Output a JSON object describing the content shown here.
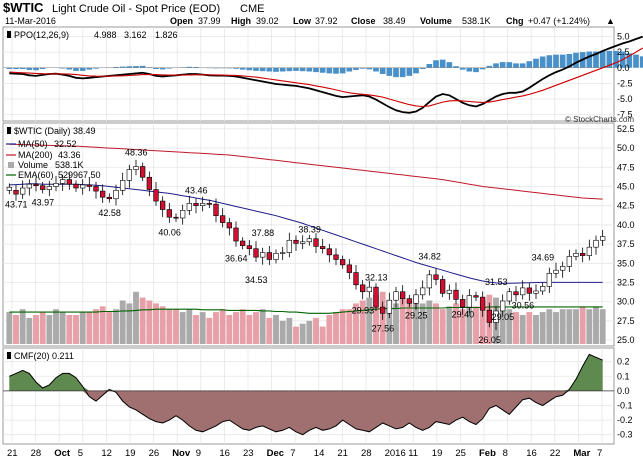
{
  "header": {
    "symbol": "$WTIC",
    "name": "Light Crude Oil - Spot Price (EOD)",
    "exchange": "CME",
    "date": "11-Mar-2016",
    "open_label": "Open",
    "open": "37.99",
    "high_label": "High",
    "high": "39.02",
    "low_label": "Low",
    "low": "37.92",
    "close_label": "Close",
    "close": "38.49",
    "volume_label": "Volume",
    "volume": "538.1K",
    "chg_label": "Chg",
    "chg": "+0.47 (+1.24%)",
    "chg_arrow": "▲",
    "watermark": "© StockCharts.com"
  },
  "colors": {
    "macd_line": "#000000",
    "signal_line": "#cc0000",
    "histogram": "#4a90c8",
    "ma50": "#1e1e8c",
    "ma200": "#c0182a",
    "ema60": "#006400",
    "volume_up": "#aaaaaa",
    "volume_down": "#e8a0a8",
    "candle_down": "#cc1133",
    "candle_up": "#ffffff",
    "cmf_fill": "#a07070",
    "cmf_pos_fill": "#5f8a4f"
  },
  "chart_data": [
    {
      "type": "line",
      "panel": "PPO",
      "indicator_label": "PPO(12,26,9)",
      "legend": [
        {
          "name": "PPO",
          "value": "4.988",
          "color": "#000000"
        },
        {
          "name": "Signal",
          "value": "3.162",
          "color": "#cc0000"
        },
        {
          "name": "Histogram",
          "value": "1.826",
          "color": "#4a90c8"
        }
      ],
      "y_ticks": [
        "5.0",
        "2.5",
        "0.0",
        "-2.5",
        "-5.0",
        "-7.5"
      ],
      "ylim": [
        -8.2,
        6.2
      ],
      "series": [
        {
          "name": "PPO",
          "values": [
            -0.9,
            -0.95,
            -1.0,
            -1.2,
            -1.3,
            -1.15,
            -1.0,
            -0.95,
            -1.1,
            -1.3,
            -1.6,
            -1.7,
            -1.6,
            -1.5,
            -1.4,
            -1.3,
            -1.2,
            -1.1,
            -1.0,
            -0.9,
            -0.8,
            -1.0,
            -1.3,
            -1.4,
            -1.3,
            -1.2,
            -1.1,
            -1.0,
            -1.0,
            -1.1,
            -1.2,
            -1.25,
            -1.25,
            -1.3,
            -1.4,
            -1.6,
            -1.8,
            -2.0,
            -2.2,
            -2.4,
            -2.6,
            -2.7,
            -2.8,
            -2.9,
            -3.1,
            -3.3,
            -3.6,
            -3.9,
            -4.2,
            -4.5,
            -4.7,
            -4.6,
            -4.5,
            -4.4,
            -4.6,
            -5.1,
            -5.7,
            -6.3,
            -6.8,
            -7.1,
            -7.2,
            -7.0,
            -6.4,
            -5.5,
            -4.6,
            -4.2,
            -4.4,
            -5.0,
            -5.6,
            -6.0,
            -6.2,
            -5.8,
            -5.2,
            -4.6,
            -4.2,
            -4.0,
            -4.0,
            -3.8,
            -3.2,
            -2.5,
            -1.8,
            -1.2,
            -0.7,
            -0.3,
            0.2,
            0.8,
            1.3,
            1.8,
            2.2,
            2.7,
            3.1,
            3.5,
            3.9,
            4.2,
            4.6,
            4.99
          ]
        },
        {
          "name": "Signal",
          "values": [
            -0.7,
            -0.75,
            -0.8,
            -0.85,
            -0.9,
            -0.95,
            -0.97,
            -0.97,
            -0.98,
            -1.02,
            -1.1,
            -1.2,
            -1.3,
            -1.35,
            -1.37,
            -1.35,
            -1.32,
            -1.28,
            -1.24,
            -1.17,
            -1.1,
            -1.08,
            -1.1,
            -1.14,
            -1.17,
            -1.18,
            -1.17,
            -1.15,
            -1.12,
            -1.12,
            -1.13,
            -1.15,
            -1.17,
            -1.2,
            -1.23,
            -1.3,
            -1.4,
            -1.5,
            -1.65,
            -1.8,
            -1.95,
            -2.1,
            -2.25,
            -2.4,
            -2.55,
            -2.7,
            -2.9,
            -3.1,
            -3.3,
            -3.55,
            -3.8,
            -4.0,
            -4.15,
            -4.25,
            -4.35,
            -4.5,
            -4.7,
            -5.0,
            -5.3,
            -5.6,
            -5.9,
            -6.1,
            -6.2,
            -6.1,
            -5.8,
            -5.5,
            -5.3,
            -5.25,
            -5.3,
            -5.4,
            -5.5,
            -5.55,
            -5.5,
            -5.3,
            -5.1,
            -4.9,
            -4.7,
            -4.5,
            -4.25,
            -3.95,
            -3.6,
            -3.2,
            -2.8,
            -2.4,
            -2.0,
            -1.6,
            -1.2,
            -0.8,
            -0.4,
            0.0,
            0.4,
            0.8,
            1.3,
            1.9,
            2.5,
            3.16
          ]
        }
      ],
      "histogram": [
        -0.2,
        -0.2,
        -0.2,
        -0.35,
        -0.4,
        -0.2,
        -0.03,
        0.02,
        -0.12,
        -0.28,
        -0.5,
        -0.5,
        -0.3,
        -0.15,
        -0.03,
        0.05,
        0.12,
        0.18,
        0.24,
        0.27,
        0.3,
        0.08,
        -0.2,
        -0.26,
        -0.13,
        -0.02,
        0.07,
        0.15,
        0.12,
        0.02,
        -0.07,
        -0.1,
        -0.08,
        -0.1,
        -0.17,
        -0.3,
        -0.4,
        -0.5,
        -0.55,
        -0.6,
        -0.65,
        -0.6,
        -0.55,
        -0.5,
        -0.55,
        -0.6,
        -0.7,
        -0.8,
        -0.9,
        -0.95,
        -0.9,
        -0.6,
        -0.35,
        -0.15,
        -0.25,
        -0.6,
        -1.0,
        -1.3,
        -1.5,
        -1.5,
        -1.3,
        -0.9,
        -0.2,
        0.6,
        1.2,
        1.3,
        0.9,
        0.25,
        -0.3,
        -0.6,
        -0.7,
        -0.25,
        0.3,
        0.7,
        0.9,
        0.9,
        0.7,
        0.7,
        1.05,
        1.45,
        1.8,
        2.0,
        2.1,
        2.1,
        2.2,
        2.4,
        2.5,
        2.6,
        2.6,
        2.7,
        2.7,
        2.7,
        2.6,
        2.3,
        2.1,
        1.83
      ]
    },
    {
      "type": "candlestick",
      "panel": "Price",
      "indicator_label": "$WTIC (Daily) 38.49",
      "legend": [
        {
          "name": "MA(50)",
          "value": "32.52",
          "color": "#1e1e8c"
        },
        {
          "name": "MA(200)",
          "value": "43.36",
          "color": "#c0182a"
        },
        {
          "name": "Volume",
          "value": "538.1K",
          "color": "#777777"
        },
        {
          "name": "EMA(60)",
          "value": "529967.50",
          "color": "#006400"
        }
      ],
      "y_ticks": [
        "52.5",
        "50.0",
        "47.5",
        "45.0",
        "42.5",
        "40.0",
        "37.5",
        "35.0",
        "32.5",
        "30.0",
        "27.5",
        "25.0"
      ],
      "ylim": [
        24.5,
        53.0
      ],
      "annotations": [
        {
          "text": "43.71",
          "i": 1,
          "v": 43.71,
          "pos": "below"
        },
        {
          "text": "43.97",
          "i": 5,
          "v": 43.97,
          "pos": "below"
        },
        {
          "text": "42.58",
          "i": 15,
          "v": 42.58,
          "pos": "below"
        },
        {
          "text": "48.36",
          "i": 19,
          "v": 48.36,
          "pos": "above"
        },
        {
          "text": "40.06",
          "i": 24,
          "v": 40.06,
          "pos": "below"
        },
        {
          "text": "43.46",
          "i": 28,
          "v": 43.46,
          "pos": "above"
        },
        {
          "text": "36.64",
          "i": 34,
          "v": 36.64,
          "pos": "below"
        },
        {
          "text": "37.88",
          "i": 38,
          "v": 37.88,
          "pos": "above"
        },
        {
          "text": "34.53",
          "i": 37,
          "v": 34.53,
          "pos": "below2"
        },
        {
          "text": "38.39",
          "i": 45,
          "v": 38.39,
          "pos": "above"
        },
        {
          "text": "29.93",
          "i": 53,
          "v": 29.93,
          "pos": "below"
        },
        {
          "text": "32.13",
          "i": 55,
          "v": 32.13,
          "pos": "above"
        },
        {
          "text": "27.56",
          "i": 56,
          "v": 27.56,
          "pos": "below"
        },
        {
          "text": "29.25",
          "i": 61,
          "v": 29.25,
          "pos": "below"
        },
        {
          "text": "34.82",
          "i": 63,
          "v": 34.82,
          "pos": "above"
        },
        {
          "text": "29.40",
          "i": 68,
          "v": 29.4,
          "pos": "below"
        },
        {
          "text": "26.05",
          "i": 72,
          "v": 26.05,
          "pos": "below"
        },
        {
          "text": "29.05",
          "i": 74,
          "v": 29.05,
          "pos": "below"
        },
        {
          "text": "31.53",
          "i": 73,
          "v": 31.53,
          "pos": "above"
        },
        {
          "text": "30.56",
          "i": 77,
          "v": 30.56,
          "pos": "below"
        },
        {
          "text": "34.69",
          "i": 80,
          "v": 34.69,
          "pos": "above"
        }
      ],
      "closes": [
        44.5,
        44.0,
        44.8,
        45.3,
        45.1,
        44.6,
        45.0,
        45.4,
        45.9,
        45.3,
        44.8,
        45.2,
        45.0,
        44.4,
        43.6,
        43.4,
        44.5,
        45.8,
        47.2,
        47.6,
        46.2,
        44.6,
        43.1,
        42.0,
        41.0,
        40.9,
        41.9,
        42.8,
        42.5,
        42.8,
        42.7,
        41.2,
        40.3,
        39.6,
        37.9,
        37.3,
        36.9,
        35.8,
        36.4,
        35.5,
        36.3,
        36.4,
        38.0,
        37.6,
        37.8,
        38.2,
        37.2,
        36.9,
        36.1,
        35.5,
        34.8,
        33.8,
        32.2,
        31.3,
        31.9,
        29.3,
        28.5,
        30.2,
        31.3,
        30.4,
        29.8,
        30.9,
        31.8,
        33.5,
        32.9,
        31.1,
        31.5,
        30.3,
        29.3,
        30.8,
        30.6,
        28.9,
        27.3,
        28.8,
        30.1,
        31.3,
        30.9,
        31.8,
        31.1,
        31.4,
        32.0,
        33.7,
        34.1,
        34.6,
        35.9,
        36.3,
        36.0,
        37.1,
        38.0,
        38.49
      ],
      "series": [
        {
          "name": "MA(50)",
          "values": [
            45.2,
            45.25,
            45.3,
            45.35,
            45.35,
            45.3,
            45.3,
            45.3,
            45.3,
            45.3,
            45.28,
            45.25,
            45.2,
            45.15,
            45.1,
            45.0,
            44.9,
            44.8,
            44.7,
            44.6,
            44.5,
            44.4,
            44.3,
            44.2,
            44.1,
            43.95,
            43.8,
            43.65,
            43.5,
            43.35,
            43.2,
            43.0,
            42.8,
            42.6,
            42.4,
            42.2,
            42.0,
            41.8,
            41.6,
            41.4,
            41.2,
            40.95,
            40.7,
            40.45,
            40.2,
            39.9,
            39.6,
            39.3,
            39.0,
            38.7,
            38.4,
            38.1,
            37.8,
            37.5,
            37.2,
            36.9,
            36.6,
            36.3,
            36.0,
            35.7,
            35.4,
            35.1,
            34.85,
            34.6,
            34.35,
            34.1,
            33.85,
            33.6,
            33.35,
            33.1,
            32.9,
            32.7,
            32.55,
            32.45,
            32.4,
            32.4,
            32.42,
            32.45,
            32.48,
            32.5,
            32.52,
            32.52,
            32.52,
            32.52,
            32.52,
            32.52,
            32.52,
            32.52,
            32.52,
            32.52
          ]
        },
        {
          "name": "MA(200)",
          "values": [
            50.5,
            50.47,
            50.45,
            50.42,
            50.4,
            50.37,
            50.35,
            50.32,
            50.3,
            50.27,
            50.25,
            50.2,
            50.15,
            50.1,
            50.05,
            50.0,
            49.95,
            49.9,
            49.85,
            49.8,
            49.75,
            49.7,
            49.65,
            49.6,
            49.55,
            49.5,
            49.45,
            49.4,
            49.35,
            49.3,
            49.25,
            49.2,
            49.15,
            49.1,
            49.0,
            48.9,
            48.8,
            48.7,
            48.6,
            48.5,
            48.4,
            48.3,
            48.2,
            48.1,
            48.0,
            47.9,
            47.8,
            47.7,
            47.6,
            47.5,
            47.4,
            47.3,
            47.2,
            47.1,
            47.0,
            46.9,
            46.8,
            46.7,
            46.6,
            46.5,
            46.4,
            46.3,
            46.2,
            46.1,
            46.0,
            45.9,
            45.75,
            45.6,
            45.45,
            45.3,
            45.15,
            45.0,
            44.9,
            44.8,
            44.7,
            44.6,
            44.5,
            44.4,
            44.3,
            44.2,
            44.1,
            44.0,
            43.9,
            43.8,
            43.7,
            43.6,
            43.5,
            43.45,
            43.4,
            43.36
          ]
        }
      ],
      "volume": [
        0.55,
        0.5,
        0.6,
        0.45,
        0.5,
        0.55,
        0.5,
        0.6,
        0.55,
        0.5,
        0.5,
        0.55,
        0.55,
        0.6,
        0.65,
        0.55,
        0.6,
        0.75,
        0.7,
        0.9,
        0.8,
        0.75,
        0.7,
        0.65,
        0.6,
        0.6,
        0.55,
        0.6,
        0.5,
        0.55,
        0.45,
        0.55,
        0.6,
        0.5,
        0.55,
        0.6,
        0.5,
        0.55,
        0.6,
        0.45,
        0.5,
        0.4,
        0.45,
        0.3,
        0.35,
        0.4,
        0.45,
        0.3,
        0.5,
        0.55,
        0.6,
        0.6,
        0.7,
        0.75,
        0.8,
        0.85,
        0.9,
        0.75,
        0.7,
        0.8,
        0.75,
        0.7,
        0.7,
        0.75,
        0.7,
        0.6,
        0.65,
        0.7,
        0.6,
        0.65,
        0.65,
        0.75,
        0.85,
        0.8,
        0.65,
        0.6,
        0.55,
        0.5,
        0.55,
        0.5,
        0.55,
        0.6,
        0.55,
        0.6,
        0.6,
        0.6,
        0.65,
        0.6,
        0.65,
        0.6
      ],
      "volume_ema": [
        0.55,
        0.55,
        0.55,
        0.55,
        0.55,
        0.55,
        0.55,
        0.55,
        0.55,
        0.55,
        0.55,
        0.55,
        0.55,
        0.55,
        0.56,
        0.56,
        0.56,
        0.57,
        0.57,
        0.58,
        0.59,
        0.59,
        0.6,
        0.6,
        0.6,
        0.6,
        0.6,
        0.6,
        0.6,
        0.59,
        0.59,
        0.59,
        0.59,
        0.58,
        0.58,
        0.58,
        0.58,
        0.58,
        0.57,
        0.57,
        0.56,
        0.56,
        0.55,
        0.55,
        0.54,
        0.53,
        0.53,
        0.53,
        0.53,
        0.54,
        0.55,
        0.56,
        0.57,
        0.58,
        0.59,
        0.6,
        0.61,
        0.61,
        0.61,
        0.62,
        0.62,
        0.62,
        0.62,
        0.62,
        0.62,
        0.62,
        0.63,
        0.63,
        0.63,
        0.63,
        0.63,
        0.63,
        0.64,
        0.64,
        0.64,
        0.64,
        0.64,
        0.64,
        0.64,
        0.64,
        0.64,
        0.64,
        0.64,
        0.64,
        0.64,
        0.64,
        0.64,
        0.64,
        0.64,
        0.64
      ],
      "down_days": [
        1,
        4,
        5,
        9,
        10,
        12,
        13,
        14,
        15,
        20,
        21,
        22,
        23,
        24,
        25,
        28,
        30,
        31,
        32,
        33,
        34,
        35,
        36,
        37,
        39,
        43,
        46,
        47,
        48,
        49,
        50,
        51,
        52,
        53,
        55,
        56,
        59,
        60,
        64,
        65,
        67,
        68,
        70,
        71,
        72,
        76,
        78,
        86
      ]
    },
    {
      "type": "area",
      "panel": "CMF",
      "indicator_label": "CMF(20) 0.211",
      "y_ticks": [
        "0.2",
        "0.1",
        "0.0",
        "-0.1",
        "-0.2",
        "-0.3"
      ],
      "ylim": [
        -0.35,
        0.28
      ],
      "values": [
        0.1,
        0.12,
        0.14,
        0.12,
        0.06,
        0.02,
        0.04,
        0.09,
        0.12,
        0.12,
        0.09,
        0.03,
        -0.04,
        -0.07,
        -0.03,
        0.01,
        -0.01,
        -0.07,
        -0.11,
        -0.13,
        -0.16,
        -0.19,
        -0.21,
        -0.22,
        -0.2,
        -0.17,
        -0.2,
        -0.24,
        -0.27,
        -0.28,
        -0.26,
        -0.24,
        -0.21,
        -0.2,
        -0.23,
        -0.26,
        -0.27,
        -0.25,
        -0.24,
        -0.26,
        -0.28,
        -0.27,
        -0.25,
        -0.28,
        -0.3,
        -0.27,
        -0.25,
        -0.27,
        -0.26,
        -0.24,
        -0.2,
        -0.23,
        -0.26,
        -0.27,
        -0.28,
        -0.25,
        -0.22,
        -0.24,
        -0.26,
        -0.25,
        -0.22,
        -0.25,
        -0.27,
        -0.25,
        -0.21,
        -0.22,
        -0.23,
        -0.2,
        -0.18,
        -0.21,
        -0.23,
        -0.19,
        -0.12,
        -0.1,
        -0.13,
        -0.16,
        -0.11,
        -0.06,
        -0.05,
        -0.08,
        -0.1,
        -0.07,
        -0.04,
        -0.03,
        0.01,
        0.08,
        0.17,
        0.25,
        0.23,
        0.21
      ],
      "x_ticks": [
        "21",
        "28",
        "Oct",
        "5",
        "12",
        "19",
        "26",
        "Nov",
        "9",
        "16",
        "23",
        "Dec",
        "7",
        "14",
        "21",
        "28",
        "2016",
        "11",
        "19",
        "25",
        "Feb",
        "8",
        "16",
        "22",
        "Mar",
        "7"
      ]
    }
  ]
}
